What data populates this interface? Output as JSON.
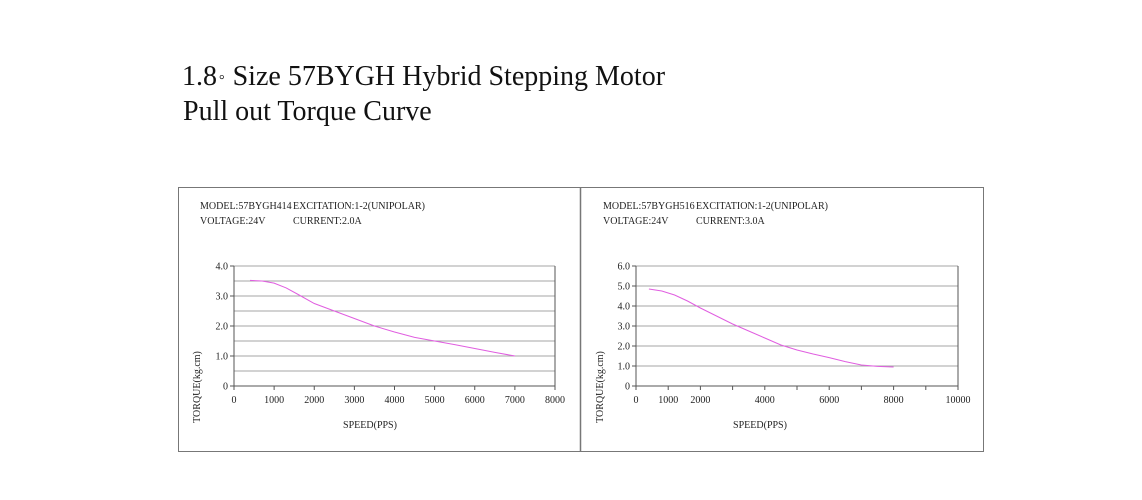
{
  "header": {
    "title_prefix": "1.8",
    "title_degree": "°",
    "title_rest": "Size 57BYGH Hybrid Stepping Motor",
    "subtitle": "Pull out Torque Curve"
  },
  "colors": {
    "curve": "#e05ee0",
    "grid": "#888888",
    "frame": "#777777"
  },
  "chart_data": [
    {
      "type": "line",
      "info": {
        "model": "MODEL:57BYGH414",
        "excitation": "EXCITATION:1-2(UNIPOLAR)",
        "voltage": "VOLTAGE:24V",
        "current": "CURRENT:2.0A"
      },
      "xlabel": "SPEED(PPS)",
      "ylabel": "TORQUE(kg.cm)",
      "xlim": [
        0,
        8000
      ],
      "ylim": [
        0,
        4
      ],
      "xticks": [
        0,
        1000,
        2000,
        3000,
        4000,
        5000,
        6000,
        7000,
        8000
      ],
      "xtick_labels": [
        "0",
        "1000",
        "2000",
        "3000",
        "4000",
        "5000",
        "6000",
        "7000",
        "8000"
      ],
      "ytick_labels": [
        {
          "v": 0,
          "label": "0"
        },
        {
          "v": 1,
          "label": "1.0"
        },
        {
          "v": 2,
          "label": "2.0"
        },
        {
          "v": 3,
          "label": "3.0"
        },
        {
          "v": 4,
          "label": "4.0"
        }
      ],
      "grid_y": [
        0.5,
        1,
        1.5,
        2,
        2.5,
        3,
        3.5,
        4
      ],
      "series": [
        {
          "x": [
            400,
            700,
            1000,
            1300,
            1600,
            2000,
            2500,
            3000,
            3500,
            4000,
            4500,
            5000,
            5500,
            6000,
            6500,
            7000
          ],
          "y": [
            3.52,
            3.5,
            3.43,
            3.27,
            3.05,
            2.75,
            2.5,
            2.25,
            2.0,
            1.8,
            1.62,
            1.5,
            1.38,
            1.25,
            1.12,
            1.0
          ]
        }
      ]
    },
    {
      "type": "line",
      "info": {
        "model": "MODEL:57BYGH516",
        "excitation": "EXCITATION:1-2(UNIPOLAR)",
        "voltage": "VOLTAGE:24V",
        "current": "CURRENT:3.0A"
      },
      "xlabel": "SPEED(PPS)",
      "ylabel": "TORQUE(kg.cm)",
      "xlim": [
        0,
        10000
      ],
      "ylim": [
        0,
        6
      ],
      "xticks": [
        0,
        1000,
        2000,
        3000,
        4000,
        5000,
        6000,
        7000,
        8000,
        9000,
        10000
      ],
      "xtick_labels": [
        "0",
        "1000",
        "2000",
        "",
        "4000",
        "",
        "6000",
        "",
        "8000",
        "",
        "10000"
      ],
      "ytick_labels": [
        {
          "v": 0,
          "label": "0"
        },
        {
          "v": 1,
          "label": "1.0"
        },
        {
          "v": 2,
          "label": "2.0"
        },
        {
          "v": 3,
          "label": "3.0"
        },
        {
          "v": 4,
          "label": "4.0"
        },
        {
          "v": 5,
          "label": "5.0"
        },
        {
          "v": 6,
          "label": "6.0"
        }
      ],
      "grid_y": [
        1,
        2,
        3,
        4,
        5,
        6
      ],
      "series": [
        {
          "x": [
            400,
            800,
            1200,
            1600,
            2000,
            2500,
            3000,
            3500,
            4000,
            4500,
            5000,
            5500,
            6000,
            6500,
            7000,
            7500,
            8000
          ],
          "y": [
            4.85,
            4.75,
            4.55,
            4.25,
            3.9,
            3.5,
            3.1,
            2.75,
            2.4,
            2.05,
            1.8,
            1.6,
            1.42,
            1.22,
            1.05,
            0.98,
            0.95
          ]
        }
      ]
    }
  ]
}
